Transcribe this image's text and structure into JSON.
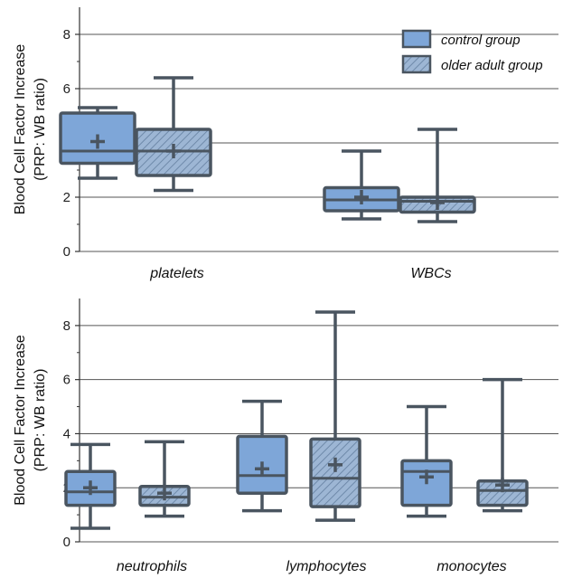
{
  "colors": {
    "control_fill": "#7ea6d8",
    "older_fill": "#9db6d4",
    "hatch": "#6f8aaa",
    "stroke": "#4a5560",
    "gridline": "#555555"
  },
  "chart_data": [
    {
      "type": "box",
      "title": "",
      "xlabel": "",
      "ylabel": "Blood Cell Factor Increase (PRP: WB ratio)",
      "ylabel_lines": [
        "Blood Cell Factor Increase",
        "(PRP: WB ratio)"
      ],
      "ylim": [
        0,
        9
      ],
      "yticks": [
        0,
        2,
        4,
        6,
        8
      ],
      "ytick_labels": [
        "0",
        "2",
        "4",
        "6",
        "8"
      ],
      "grid": true,
      "legend_position": "top-right",
      "legend": [
        {
          "name": "control group",
          "style": "solid"
        },
        {
          "name": "older adult group",
          "style": "hatched"
        }
      ],
      "categories": [
        "platelets",
        "WBCs"
      ],
      "series": [
        {
          "name": "control group",
          "boxes": [
            {
              "min": 2.7,
              "q1": 3.25,
              "median": 3.7,
              "q3": 5.1,
              "max": 5.3,
              "mean": 4.05
            },
            {
              "min": 1.2,
              "q1": 1.5,
              "median": 1.9,
              "q3": 2.35,
              "max": 3.7,
              "mean": 2.0
            }
          ]
        },
        {
          "name": "older adult group",
          "boxes": [
            {
              "min": 2.25,
              "q1": 2.8,
              "median": 3.7,
              "q3": 4.5,
              "max": 6.4,
              "mean": 3.7
            },
            {
              "min": 1.1,
              "q1": 1.45,
              "median": 1.85,
              "q3": 2.0,
              "max": 4.5,
              "mean": 1.8
            }
          ]
        }
      ]
    },
    {
      "type": "box",
      "title": "",
      "xlabel": "",
      "ylabel": "Blood Cell Factor Increase (PRP: WB ratio)",
      "ylabel_lines": [
        "Blood Cell Factor Increase",
        "(PRP: WB ratio)"
      ],
      "ylim": [
        0,
        9
      ],
      "yticks": [
        0,
        2,
        4,
        6,
        8
      ],
      "ytick_labels": [
        "0",
        "2",
        "4",
        "6",
        "8"
      ],
      "grid": true,
      "categories": [
        "neutrophils",
        "lymphocytes",
        "monocytes"
      ],
      "series": [
        {
          "name": "control group",
          "boxes": [
            {
              "min": 0.5,
              "q1": 1.35,
              "median": 1.85,
              "q3": 2.6,
              "max": 3.6,
              "mean": 2.0
            },
            {
              "min": 1.15,
              "q1": 1.8,
              "median": 2.45,
              "q3": 3.9,
              "max": 5.2,
              "mean": 2.7
            },
            {
              "min": 0.95,
              "q1": 1.35,
              "median": 2.6,
              "q3": 3.0,
              "max": 5.0,
              "mean": 2.4
            }
          ]
        },
        {
          "name": "older adult group",
          "boxes": [
            {
              "min": 0.95,
              "q1": 1.35,
              "median": 1.65,
              "q3": 2.05,
              "max": 3.7,
              "mean": 1.8
            },
            {
              "min": 0.8,
              "q1": 1.3,
              "median": 2.35,
              "q3": 3.8,
              "max": 8.5,
              "mean": 2.85
            },
            {
              "min": 1.15,
              "q1": 1.35,
              "median": 1.9,
              "q3": 2.25,
              "max": 6.0,
              "mean": 2.1
            }
          ]
        }
      ]
    }
  ]
}
